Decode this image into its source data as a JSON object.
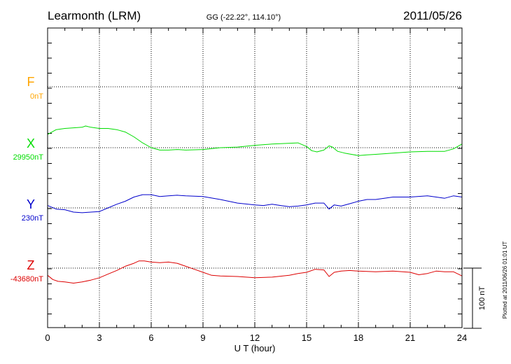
{
  "header": {
    "station": "Learmonth (LRM)",
    "coords": "GG (-22.22°, 114.10°)",
    "date": "2011/05/26"
  },
  "footer": {
    "plotted": "Plotted at 2011/06/26 01:01 UT",
    "scale_label": "100 nT"
  },
  "colors": {
    "F": "#ffa500",
    "X": "#00dd00",
    "Y": "#0000cc",
    "Z": "#dd0000",
    "axis": "#000000"
  },
  "chart_data": {
    "type": "line",
    "xlabel": "U T (hour)",
    "ylabel": "",
    "xlim": [
      0,
      24
    ],
    "x_ticks": [
      0,
      3,
      6,
      9,
      12,
      15,
      18,
      21,
      24
    ],
    "x_tick_labels": [
      "0",
      "3",
      "6",
      "9",
      "12",
      "15",
      "18",
      "21",
      "24"
    ],
    "scale_nT": 100,
    "grid": true,
    "series": [
      {
        "name": "F",
        "baseline_label": "0nT",
        "x": [],
        "y": []
      },
      {
        "name": "X",
        "baseline_label": "29950nT",
        "x": [
          0,
          0.5,
          1,
          1.5,
          2,
          2.2,
          2.5,
          3,
          3.5,
          4,
          4.5,
          5,
          5.5,
          6,
          6.5,
          7,
          7.5,
          8,
          9,
          10,
          11,
          12,
          13,
          13.7,
          14.5,
          15,
          15.3,
          15.6,
          16,
          16.3,
          16.5,
          16.8,
          17.2,
          17.6,
          18,
          18.5,
          19,
          20,
          21,
          22,
          23,
          23.5,
          24
        ],
        "y": [
          29972,
          29980,
          29982,
          29983,
          29984,
          29986,
          29984,
          29982,
          29982,
          29980,
          29976,
          29968,
          29958,
          29950,
          29946,
          29946,
          29947,
          29946,
          29947,
          29950,
          29951,
          29954,
          29956,
          29957,
          29958,
          29952,
          29945,
          29943,
          29946,
          29953,
          29951,
          29944,
          29941,
          29939,
          29937,
          29938,
          29939,
          29941,
          29943,
          29944,
          29944,
          29948,
          29956
        ]
      },
      {
        "name": "Y",
        "baseline_label": "230nT",
        "x": [
          0,
          0.5,
          1,
          1.5,
          2,
          2.5,
          3,
          3.5,
          4,
          4.5,
          5,
          5.5,
          6,
          6.5,
          7,
          7.5,
          8,
          9,
          10,
          11,
          12,
          12.5,
          13,
          13.5,
          14,
          14.5,
          15,
          15.5,
          16,
          16.3,
          16.6,
          17,
          17.5,
          18,
          18.5,
          19,
          20,
          21,
          22,
          22.5,
          23,
          23.5,
          24
        ],
        "y": [
          234,
          228,
          227,
          223,
          222,
          223,
          224,
          230,
          236,
          241,
          248,
          252,
          252,
          249,
          250,
          251,
          250,
          249,
          244,
          238,
          235,
          234,
          236,
          234,
          232,
          233,
          235,
          238,
          238,
          228,
          235,
          233,
          237,
          241,
          244,
          244,
          248,
          248,
          250,
          248,
          246,
          250,
          248
        ]
      },
      {
        "name": "Z",
        "baseline_label": "-43680nT",
        "x": [
          0,
          0.3,
          0.6,
          1,
          1.5,
          2,
          2.5,
          3,
          3.5,
          4,
          4.5,
          5,
          5.3,
          5.6,
          6,
          6.5,
          7,
          7.5,
          8,
          8.5,
          9,
          9.5,
          10,
          11,
          12,
          13,
          14,
          14.5,
          15,
          15.5,
          16,
          16.3,
          16.6,
          17,
          17.5,
          18,
          19,
          20,
          21,
          21.5,
          22,
          22.5,
          23,
          23.5,
          24
        ],
        "y": [
          -43692,
          -43699,
          -43702,
          -43703,
          -43705,
          -43703,
          -43700,
          -43696,
          -43690,
          -43684,
          -43677,
          -43672,
          -43668,
          -43668,
          -43670,
          -43671,
          -43670,
          -43672,
          -43677,
          -43682,
          -43687,
          -43692,
          -43693,
          -43694,
          -43696,
          -43695,
          -43692,
          -43689,
          -43687,
          -43682,
          -43683,
          -43694,
          -43687,
          -43685,
          -43684,
          -43685,
          -43686,
          -43685,
          -43687,
          -43691,
          -43689,
          -43685,
          -43686,
          -43686,
          -43693
        ]
      }
    ]
  }
}
